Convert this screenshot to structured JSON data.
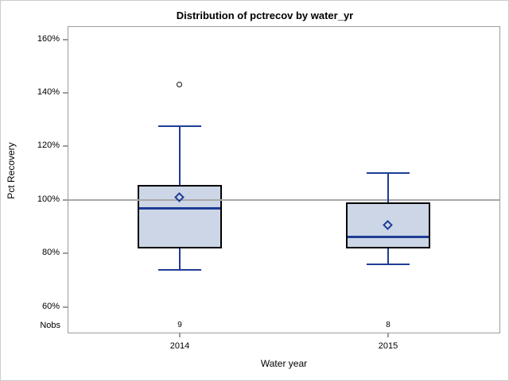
{
  "title": "Distribution of pctrecov by water_yr",
  "y_axis": {
    "label": "Pct Recovery",
    "ticks": [
      "160%",
      "140%",
      "120%",
      "100%",
      "80%",
      "60%"
    ],
    "tick_values": [
      160,
      140,
      120,
      100,
      80,
      60
    ]
  },
  "x_axis": {
    "label": "Water year",
    "categories": [
      "2014",
      "2015"
    ]
  },
  "nobs": {
    "label": "Nobs"
  },
  "colors": {
    "box_fill": "#ccd6e6",
    "box_border": "#000000",
    "line_blue": "#1e3d96",
    "axis_gray": "#9c9c9c",
    "reference_line_gray": "#a8a8a8",
    "text": "#000000",
    "background": "#ffffff"
  },
  "chart_data": {
    "type": "box",
    "title": "Distribution of pctrecov by water_yr",
    "xlabel": "Water year",
    "ylabel": "Pct Recovery",
    "categories": [
      "2014",
      "2015"
    ],
    "ylim": [
      50.2,
      164.9
    ],
    "yticks": [
      60,
      80,
      100,
      120,
      140,
      160
    ],
    "ytick_format": "percent",
    "reference_line": 100,
    "grid": false,
    "legend": false,
    "series": [
      {
        "category": "2014",
        "nobs": 9,
        "whisker_low": 74,
        "q1": 82,
        "median": 97,
        "mean": 101,
        "q3": 105.5,
        "whisker_high": 127.5,
        "outliers": [
          143
        ]
      },
      {
        "category": "2015",
        "nobs": 8,
        "whisker_low": 76,
        "q1": 82,
        "median": 86.5,
        "mean": 90.5,
        "q3": 99,
        "whisker_high": 110,
        "outliers": []
      }
    ]
  }
}
